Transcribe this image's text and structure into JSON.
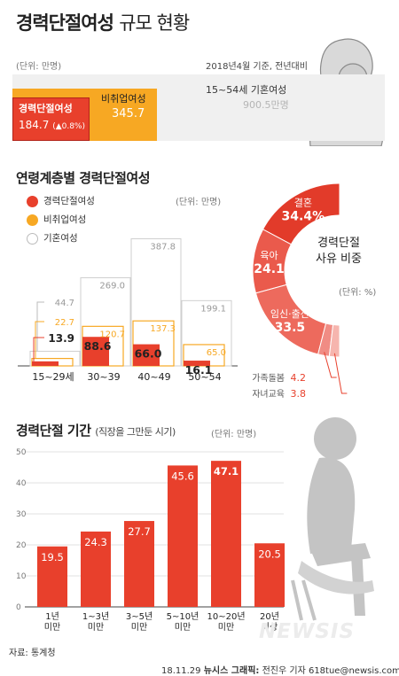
{
  "header": {
    "title_bold": "경력단절여성",
    "title_light": "규모 현황",
    "unit": "(단위: 만명)",
    "basis": "2018년4월 기준, 전년대비"
  },
  "summary": {
    "career_break_label": "경력단절여성",
    "career_break_value": "184.7",
    "career_break_change": "(▲0.8%)",
    "non_employed_label": "비취업여성",
    "non_employed_value": "345.7",
    "married_label": "15~54세 기혼여성",
    "married_value": "900.5만명"
  },
  "age_section": {
    "title": "연령계층별 경력단절여성",
    "unit": "(단위: 만명)",
    "legend": [
      "경력단절여성",
      "비취업여성",
      "기혼여성"
    ]
  },
  "reason_section": {
    "title_line1": "경력단절",
    "title_line2": "사유 비중",
    "unit": "(단위: %)"
  },
  "duration_section": {
    "title": "경력단절 기간",
    "title_sub": "(직장을 그만둔 시기)",
    "unit": "(단위: 만명)"
  },
  "footer": {
    "source": "자료: 통계청",
    "credit_date": "18.11.29",
    "credit_org": "뉴시스 그래픽:",
    "credit_author": "전진우 기자 618tue@newsis.com",
    "watermark": "NEWSIS"
  },
  "colors": {
    "career_break": "#e8402c",
    "non_employed": "#f7a823",
    "married": "#ffffff",
    "donut_dark": "#e23b2a",
    "donut_mid": "#ea5a4c",
    "donut_light1": "#f08c84",
    "donut_light2": "#f6b5ae"
  },
  "chart_data": [
    {
      "type": "bar",
      "categories": [
        "15~29세",
        "30~39",
        "40~49",
        "50~54"
      ],
      "series": [
        {
          "name": "기혼여성",
          "values": [
            44.7,
            269.0,
            387.8,
            199.1
          ]
        },
        {
          "name": "비취업여성",
          "values": [
            22.7,
            120.7,
            137.3,
            65.0
          ]
        },
        {
          "name": "경력단절여성",
          "values": [
            13.9,
            88.6,
            66.0,
            16.1
          ]
        }
      ]
    },
    {
      "type": "pie",
      "categories": [
        "결혼",
        "육아",
        "임신·출산",
        "가족돌봄",
        "자녀교육"
      ],
      "values": [
        34.4,
        24.1,
        33.5,
        4.2,
        3.8
      ]
    },
    {
      "type": "bar",
      "categories": [
        "1년 미만",
        "1~3년 미만",
        "3~5년 미만",
        "5~10년 미만",
        "10~20년 미만",
        "20년 이상"
      ],
      "values": [
        19.5,
        24.3,
        27.7,
        45.6,
        47.1,
        20.5
      ],
      "ylim": [
        0,
        50
      ],
      "yticks": [
        0,
        10,
        20,
        30,
        40,
        50
      ]
    }
  ]
}
